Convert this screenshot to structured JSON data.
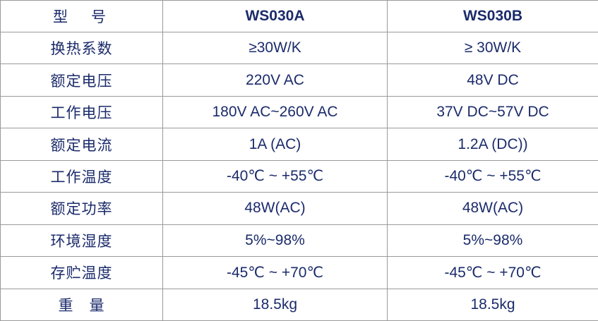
{
  "table": {
    "header": [
      "型　号",
      "WS030A",
      "WS030B"
    ],
    "rows": [
      [
        "换热系数",
        "≥30W/K",
        "≥ 30W/K"
      ],
      [
        "额定电压",
        "220V AC",
        "48V DC"
      ],
      [
        "工作电压",
        "180V AC~260V AC",
        "37V DC~57V DC"
      ],
      [
        "额定电流",
        "1A (AC)",
        "1.2A (DC))"
      ],
      [
        "工作温度",
        "-40℃ ~ +55℃",
        "-40℃ ~ +55℃"
      ],
      [
        "额定功率",
        "48W(AC)",
        "48W(AC)"
      ],
      [
        "环境湿度",
        "5%~98%",
        "5%~98%"
      ],
      [
        "存贮温度",
        "-45℃ ~ +70℃",
        "-45℃ ~ +70℃"
      ],
      [
        "重　量",
        "18.5kg",
        "18.5kg"
      ]
    ]
  }
}
